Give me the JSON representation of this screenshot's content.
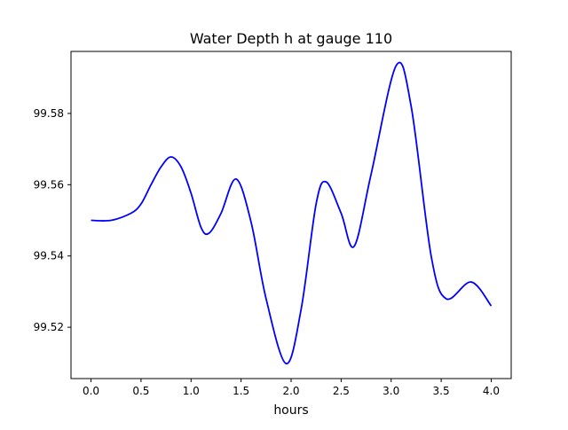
{
  "chart_data": {
    "type": "line",
    "title": "Water Depth h at gauge 110",
    "xlabel": "hours",
    "ylabel": "",
    "xlim": [
      -0.2,
      4.2
    ],
    "ylim": [
      99.5056,
      99.5974
    ],
    "xticks": [
      0.0,
      0.5,
      1.0,
      1.5,
      2.0,
      2.5,
      3.0,
      3.5,
      4.0
    ],
    "xtick_labels": [
      "0.0",
      "0.5",
      "1.0",
      "1.5",
      "2.0",
      "2.5",
      "3.0",
      "3.5",
      "4.0"
    ],
    "yticks": [
      99.52,
      99.54,
      99.56,
      99.58
    ],
    "ytick_labels": [
      "99.52",
      "99.54",
      "99.56",
      "99.58"
    ],
    "grid": false,
    "series": [
      {
        "name": "h",
        "color": "#0000ff",
        "x": [
          0.0,
          0.2,
          0.4,
          0.5,
          0.6,
          0.7,
          0.8,
          0.9,
          1.0,
          1.1,
          1.18,
          1.3,
          1.45,
          1.6,
          1.75,
          1.95,
          2.1,
          2.25,
          2.35,
          2.5,
          2.63,
          2.8,
          3.05,
          3.2,
          3.4,
          3.55,
          3.8,
          4.0
        ],
        "y": [
          99.55,
          99.55,
          99.552,
          99.5546,
          99.56,
          99.565,
          99.5678,
          99.565,
          99.5576,
          99.548,
          99.5464,
          99.552,
          99.5616,
          99.5495,
          99.528,
          99.5098,
          99.525,
          99.5546,
          99.5608,
          99.552,
          99.5427,
          99.563,
          99.5934,
          99.582,
          99.54,
          99.528,
          99.5327,
          99.526
        ]
      }
    ]
  }
}
